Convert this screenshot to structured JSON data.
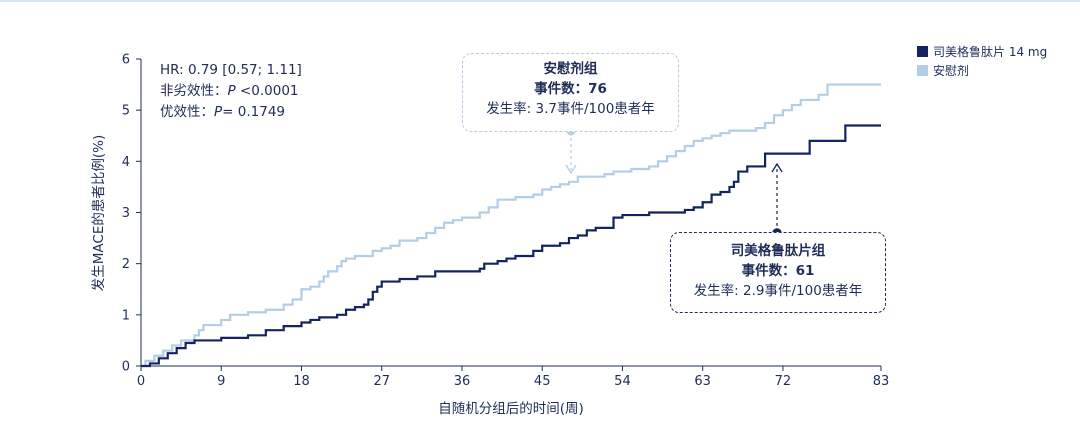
{
  "stats": {
    "hr": "HR: 0.79 [0.57; 1.11]",
    "noninferiority_label": "非劣效性：",
    "noninferiority_p": "P",
    "noninferiority_value": " <0.0001",
    "superiority_label": "优效性：",
    "superiority_p": "P",
    "superiority_value": "= 0.1749"
  },
  "callout_placebo": {
    "title": "安慰剂组",
    "events": "事件数：76",
    "rate": "发生率: 3.7事件/100患者年"
  },
  "callout_drug": {
    "title": "司美格鲁肽片组",
    "events": "事件数：61",
    "rate": "发生率: 2.9事件/100患者年"
  },
  "chart_data": {
    "type": "line",
    "title": "",
    "xlabel": "自随机分组后的时间(周)",
    "ylabel": "发生MACE的患者比例(%)",
    "xlim": [
      0,
      83
    ],
    "ylim": [
      0,
      6
    ],
    "xticks": [
      0,
      9,
      18,
      27,
      36,
      45,
      54,
      63,
      72,
      83
    ],
    "yticks": [
      0,
      1,
      2,
      3,
      4,
      5,
      6
    ],
    "legend_position": "top-right",
    "series": [
      {
        "name": "司美格鲁肽片 14 mg",
        "color": "#14245e",
        "step": true,
        "points": [
          [
            0,
            0
          ],
          [
            1,
            0.05
          ],
          [
            2,
            0.15
          ],
          [
            3,
            0.25
          ],
          [
            4,
            0.35
          ],
          [
            5,
            0.45
          ],
          [
            6,
            0.5
          ],
          [
            9,
            0.55
          ],
          [
            12,
            0.6
          ],
          [
            14,
            0.7
          ],
          [
            16,
            0.78
          ],
          [
            18,
            0.85
          ],
          [
            19,
            0.9
          ],
          [
            20,
            0.95
          ],
          [
            22,
            1.0
          ],
          [
            23,
            1.1
          ],
          [
            24,
            1.15
          ],
          [
            25,
            1.2
          ],
          [
            25.5,
            1.3
          ],
          [
            26,
            1.45
          ],
          [
            26.5,
            1.55
          ],
          [
            27,
            1.65
          ],
          [
            29,
            1.7
          ],
          [
            31,
            1.75
          ],
          [
            33,
            1.85
          ],
          [
            38,
            1.9
          ],
          [
            38.5,
            2.0
          ],
          [
            40,
            2.05
          ],
          [
            41,
            2.1
          ],
          [
            42,
            2.15
          ],
          [
            44,
            2.25
          ],
          [
            45,
            2.35
          ],
          [
            47,
            2.4
          ],
          [
            48,
            2.5
          ],
          [
            49,
            2.55
          ],
          [
            50,
            2.65
          ],
          [
            51,
            2.7
          ],
          [
            53,
            2.9
          ],
          [
            54,
            2.95
          ],
          [
            57,
            3.0
          ],
          [
            61,
            3.05
          ],
          [
            62,
            3.1
          ],
          [
            63,
            3.2
          ],
          [
            64,
            3.35
          ],
          [
            65,
            3.4
          ],
          [
            66,
            3.5
          ],
          [
            66.5,
            3.6
          ],
          [
            67,
            3.8
          ],
          [
            68,
            3.9
          ],
          [
            70,
            4.15
          ],
          [
            71,
            4.15
          ],
          [
            75,
            4.4
          ],
          [
            79,
            4.7
          ],
          [
            83,
            4.7
          ]
        ]
      },
      {
        "name": "安慰剂",
        "color": "#b4cde6",
        "step": true,
        "points": [
          [
            0,
            0
          ],
          [
            0.5,
            0.1
          ],
          [
            1.5,
            0.2
          ],
          [
            2.5,
            0.3
          ],
          [
            3.5,
            0.4
          ],
          [
            4.5,
            0.5
          ],
          [
            6,
            0.6
          ],
          [
            6.5,
            0.7
          ],
          [
            7,
            0.8
          ],
          [
            9,
            0.9
          ],
          [
            10,
            1.0
          ],
          [
            12,
            1.05
          ],
          [
            14,
            1.1
          ],
          [
            16,
            1.2
          ],
          [
            17,
            1.3
          ],
          [
            18,
            1.5
          ],
          [
            19,
            1.55
          ],
          [
            20,
            1.65
          ],
          [
            20.5,
            1.75
          ],
          [
            21,
            1.85
          ],
          [
            22,
            1.95
          ],
          [
            22.5,
            2.05
          ],
          [
            23,
            2.1
          ],
          [
            24,
            2.15
          ],
          [
            26,
            2.25
          ],
          [
            27,
            2.3
          ],
          [
            28,
            2.35
          ],
          [
            29,
            2.45
          ],
          [
            31,
            2.5
          ],
          [
            32,
            2.6
          ],
          [
            33,
            2.7
          ],
          [
            34,
            2.8
          ],
          [
            35,
            2.85
          ],
          [
            36,
            2.9
          ],
          [
            38,
            3.0
          ],
          [
            39,
            3.1
          ],
          [
            40,
            3.25
          ],
          [
            42,
            3.3
          ],
          [
            44,
            3.35
          ],
          [
            45,
            3.45
          ],
          [
            46,
            3.5
          ],
          [
            47,
            3.55
          ],
          [
            48,
            3.6
          ],
          [
            49,
            3.7
          ],
          [
            52,
            3.75
          ],
          [
            53,
            3.8
          ],
          [
            55,
            3.85
          ],
          [
            57,
            3.9
          ],
          [
            58,
            4.0
          ],
          [
            59,
            4.1
          ],
          [
            60,
            4.2
          ],
          [
            61,
            4.3
          ],
          [
            62,
            4.4
          ],
          [
            63,
            4.45
          ],
          [
            64,
            4.5
          ],
          [
            65,
            4.55
          ],
          [
            66,
            4.6
          ],
          [
            69,
            4.65
          ],
          [
            70,
            4.75
          ],
          [
            71,
            4.9
          ],
          [
            72,
            5.0
          ],
          [
            73,
            5.1
          ],
          [
            74,
            5.2
          ],
          [
            76,
            5.3
          ],
          [
            77,
            5.5
          ],
          [
            83,
            5.5
          ]
        ]
      }
    ]
  },
  "colors": {
    "drug": "#14245e",
    "placebo": "#b4cde6",
    "axis": "#1f2d57"
  }
}
